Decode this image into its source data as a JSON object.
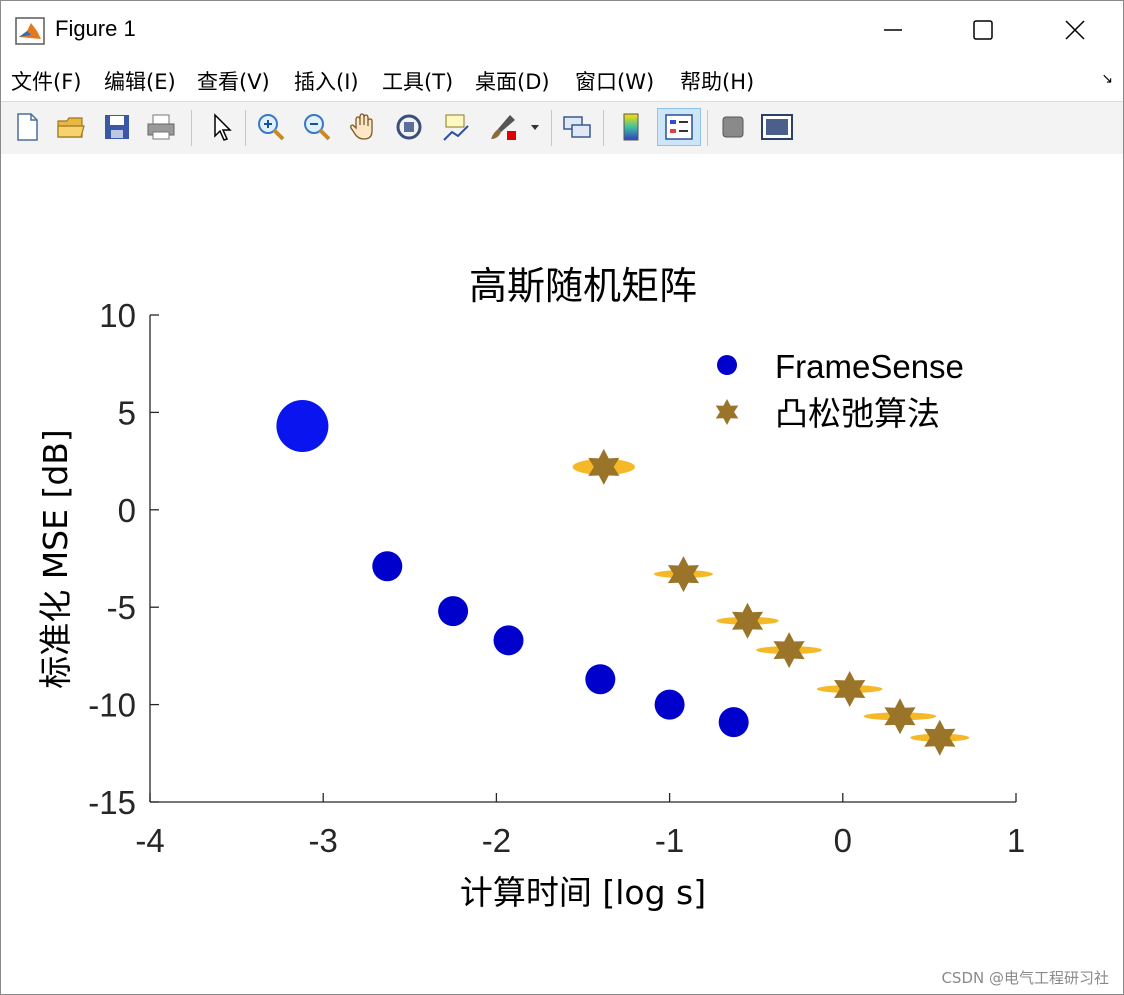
{
  "window": {
    "title": "Figure 1",
    "buttons": {
      "minimize": "—",
      "maximize": "☐",
      "close": "✕"
    }
  },
  "menubar": {
    "items": [
      {
        "label": "文件(F)"
      },
      {
        "label": "编辑(E)"
      },
      {
        "label": "查看(V)"
      },
      {
        "label": "插入(I)"
      },
      {
        "label": "工具(T)"
      },
      {
        "label": "桌面(D)"
      },
      {
        "label": "窗口(W)"
      },
      {
        "label": "帮助(H)"
      }
    ]
  },
  "toolbar": {
    "icons": [
      "new-figure-icon",
      "open-file-icon",
      "save-icon",
      "print-icon",
      "pointer-icon",
      "zoom-in-icon",
      "zoom-out-icon",
      "pan-icon",
      "rotate-3d-icon",
      "data-cursor-icon",
      "brush-icon",
      "link-plot-icon",
      "colorbar-icon",
      "legend-icon",
      "hide-plot-tools-icon",
      "show-plot-tools-icon"
    ],
    "active": "legend-icon"
  },
  "chart_data": {
    "type": "scatter",
    "title": "高斯随机矩阵",
    "xlabel": "计算时间 [log s]",
    "ylabel": "标准化 MSE [dB]",
    "xlim": [
      -4,
      1
    ],
    "ylim": [
      -15,
      10
    ],
    "xticks": [
      "-4",
      "-3",
      "-2",
      "-1",
      "0",
      "1"
    ],
    "yticks": [
      "10",
      "5",
      "0",
      "-5",
      "-10",
      "-15"
    ],
    "grid": false,
    "legend_position": "top-right",
    "series": [
      {
        "name": "FrameSense",
        "marker": "circle",
        "color": "#0000cc",
        "x": [
          -3.12,
          -2.63,
          -2.25,
          -1.93,
          -1.4,
          -1.0,
          -0.63
        ],
        "y": [
          4.3,
          -2.9,
          -5.2,
          -6.7,
          -8.7,
          -10.0,
          -10.9
        ]
      },
      {
        "name": "凸松弛算法",
        "marker": "hexagram",
        "color": "#9a7428",
        "errcolor": "#f5b928",
        "x": [
          -1.38,
          -0.92,
          -0.55,
          -0.31,
          0.04,
          0.33,
          0.56
        ],
        "y": [
          2.2,
          -3.3,
          -5.7,
          -7.2,
          -9.2,
          -10.6,
          -11.7
        ],
        "xerr": [
          0.18,
          0.17,
          0.18,
          0.19,
          0.19,
          0.21,
          0.17
        ]
      }
    ]
  },
  "watermark": "CSDN @电气工程研习社"
}
